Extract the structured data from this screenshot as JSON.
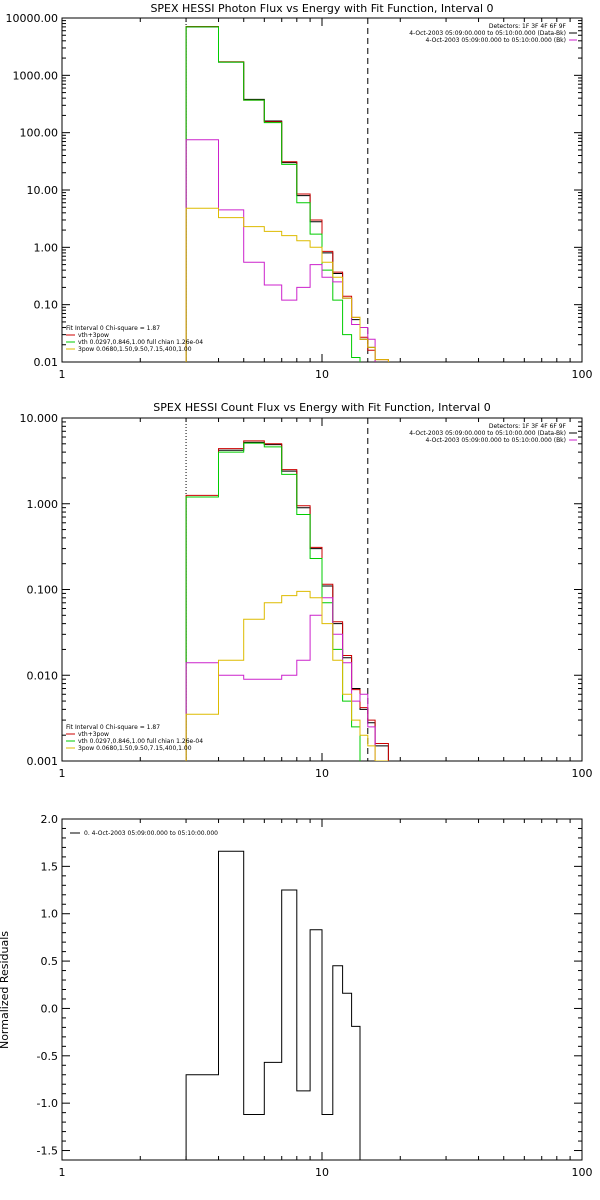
{
  "chart_data": [
    {
      "type": "line",
      "title": "SPEX HESSI Photon Flux vs Energy with Fit Function, Interval 0",
      "xscale": "log",
      "yscale": "log",
      "xlim": [
        1,
        100
      ],
      "ylim": [
        0.01,
        10000
      ],
      "xticks": [
        "1",
        "10",
        "100"
      ],
      "yticks": [
        "10000.00",
        "1000.00",
        "100.00",
        "10.00",
        "1.00",
        "0.10",
        "0.01"
      ],
      "legend_right": [
        {
          "text": "Detectors: 1F 3F 4F 6F 9F"
        },
        {
          "text": "4-Oct-2003 05:09:00.000 to 05:10:00.000 (Data-Bk)",
          "color": "#000000"
        },
        {
          "text": "4-Oct-2003 05:09:00.000 to 05:10:00.000 (Bk)",
          "color": "#cc22cc"
        }
      ],
      "legend_left": [
        {
          "text": "Fit Interval 0   Chi-square = 1.87"
        },
        {
          "text": "vth+3pow",
          "color": "#cc0000"
        },
        {
          "text": "vth 0.0297,0.846,1.00  full chian 1.26e-04",
          "color": "#00cc00"
        },
        {
          "text": "3pow 0.0680,1.50,9.50,7.15,400,1.00",
          "color": "#ddbb00"
        }
      ],
      "vlines": [
        {
          "x": 3.0,
          "style": "dotted"
        },
        {
          "x": 15.0,
          "style": "dashed"
        }
      ],
      "series": [
        {
          "color": "#000000",
          "edges": [
            3.0,
            4.0,
            5.0,
            6.0,
            7.0,
            8.0,
            9.0,
            10.0,
            11.0,
            12.0,
            13.0,
            14.0,
            15.0,
            16.0,
            18.0
          ],
          "values": [
            7000,
            1700,
            380,
            160,
            30,
            8,
            2.8,
            0.8,
            0.35,
            0.13,
            0.055,
            0.025,
            0.018,
            0.01
          ]
        },
        {
          "color": "#cc0000",
          "edges": [
            3.0,
            4.0,
            5.0,
            6.0,
            7.0,
            8.0,
            9.0,
            10.0,
            11.0,
            12.0,
            13.0,
            14.0,
            15.0,
            16.0,
            18.0
          ],
          "values": [
            7100,
            1720,
            370,
            155,
            31,
            8.5,
            3.0,
            0.85,
            0.37,
            0.14,
            0.06,
            0.027,
            0.016,
            0.011
          ]
        },
        {
          "color": "#00cc00",
          "edges": [
            3.0,
            4.0,
            5.0,
            6.0,
            7.0,
            8.0,
            9.0,
            10.0,
            11.0,
            12.0,
            13.0,
            14.0
          ],
          "values": [
            7000,
            1700,
            370,
            150,
            28,
            6,
            1.7,
            0.4,
            0.12,
            0.03,
            0.012
          ]
        },
        {
          "color": "#cc22cc",
          "edges": [
            3.0,
            4.0,
            5.0,
            6.0,
            7.0,
            8.0,
            9.0,
            10.0,
            11.0,
            12.0,
            13.0,
            14.0,
            15.0,
            16.0
          ],
          "values": [
            75,
            4.5,
            0.55,
            0.22,
            0.12,
            0.2,
            0.5,
            0.3,
            0.25,
            0.13,
            0.045,
            0.04,
            0.025
          ]
        },
        {
          "color": "#ddbb00",
          "edges": [
            3.0,
            4.0,
            5.0,
            6.0,
            7.0,
            8.0,
            9.0,
            10.0,
            11.0,
            12.0,
            13.0,
            14.0,
            15.0,
            16.0,
            18.0
          ],
          "values": [
            4.8,
            3.3,
            2.3,
            1.9,
            1.6,
            1.3,
            1.0,
            0.55,
            0.3,
            0.13,
            0.06,
            0.025,
            0.018,
            0.011
          ]
        }
      ]
    },
    {
      "type": "line",
      "title": "SPEX HESSI Count Flux vs Energy with Fit Function, Interval 0",
      "xscale": "log",
      "yscale": "log",
      "xlim": [
        1,
        100
      ],
      "ylim": [
        0.001,
        10
      ],
      "xticks": [
        "1",
        "10",
        "100"
      ],
      "yticks": [
        "10.000",
        "1.000",
        "0.100",
        "0.010",
        "0.001"
      ],
      "legend_right": [
        {
          "text": "Detectors: 1F 3F 4F 6F 9F"
        },
        {
          "text": "4-Oct-2003 05:09:00.000 to 05:10:00.000 (Data-Bk)",
          "color": "#000000"
        },
        {
          "text": "4-Oct-2003 05:09:00.000 to 05:10:00.000 (Bk)",
          "color": "#cc22cc"
        }
      ],
      "legend_left": [
        {
          "text": "Fit Interval 0   Chi-square = 1.87"
        },
        {
          "text": "vth+3pow",
          "color": "#cc0000"
        },
        {
          "text": "vth 0.0297,0.846,1.00  full chian 1.26e-04",
          "color": "#00cc00"
        },
        {
          "text": "3pow 0.0680,1.50,9.50,7.15,400,1.00",
          "color": "#ddbb00"
        }
      ],
      "vlines": [
        {
          "x": 3.0,
          "style": "dotted"
        },
        {
          "x": 15.0,
          "style": "dashed"
        }
      ],
      "series": [
        {
          "color": "#000000",
          "edges": [
            3.0,
            4.0,
            5.0,
            6.0,
            7.0,
            8.0,
            9.0,
            10.0,
            11.0,
            12.0,
            13.0,
            14.0,
            15.0,
            16.0,
            18.0
          ],
          "values": [
            1.2,
            4.2,
            5.2,
            4.9,
            2.4,
            0.9,
            0.3,
            0.11,
            0.04,
            0.016,
            0.007,
            0.004,
            0.0028,
            0.0015
          ]
        },
        {
          "color": "#cc0000",
          "edges": [
            3.0,
            4.0,
            5.0,
            6.0,
            7.0,
            8.0,
            9.0,
            10.0,
            11.0,
            12.0,
            13.0,
            14.0,
            15.0,
            16.0,
            18.0
          ],
          "values": [
            1.25,
            4.4,
            5.4,
            5.0,
            2.5,
            0.95,
            0.31,
            0.115,
            0.042,
            0.017,
            0.0068,
            0.0042,
            0.003,
            0.0016
          ]
        },
        {
          "color": "#00cc00",
          "edges": [
            3.0,
            4.0,
            5.0,
            6.0,
            7.0,
            8.0,
            9.0,
            10.0,
            11.0,
            12.0,
            13.0,
            14.0
          ],
          "values": [
            1.2,
            4.0,
            5.1,
            4.6,
            2.2,
            0.75,
            0.23,
            0.07,
            0.02,
            0.005,
            0.0025
          ]
        },
        {
          "color": "#cc22cc",
          "edges": [
            3.0,
            4.0,
            5.0,
            6.0,
            7.0,
            8.0,
            9.0,
            10.0,
            11.0,
            12.0,
            13.0,
            14.0,
            15.0,
            16.0
          ],
          "values": [
            0.014,
            0.01,
            0.009,
            0.009,
            0.01,
            0.015,
            0.05,
            0.08,
            0.03,
            0.014,
            0.005,
            0.006,
            0.0025
          ]
        },
        {
          "color": "#ddbb00",
          "edges": [
            3.0,
            4.0,
            5.0,
            6.0,
            7.0,
            8.0,
            9.0,
            10.0,
            11.0,
            12.0,
            13.0,
            14.0,
            15.0,
            16.0,
            18.0
          ],
          "values": [
            0.0035,
            0.015,
            0.045,
            0.07,
            0.085,
            0.095,
            0.08,
            0.04,
            0.015,
            0.006,
            0.003,
            0.002,
            0.0015,
            0.001
          ]
        }
      ]
    },
    {
      "type": "line",
      "ylabel": "Normalized Residuals",
      "xscale": "log",
      "xlim": [
        1,
        100
      ],
      "ylim": [
        -1.6,
        2.0
      ],
      "xticks": [
        "1",
        "10",
        "100"
      ],
      "yticks": [
        "2.0",
        "1.5",
        "1.0",
        "0.5",
        "0.0",
        "-0.5",
        "-1.0",
        "-1.5"
      ],
      "legend": [
        {
          "text": "0. 4-Oct-2003 05:09:00.000 to 05:10:00.000",
          "color": "#000000"
        }
      ],
      "series": [
        {
          "color": "#000000",
          "edges": [
            3.0,
            4.0,
            5.0,
            6.0,
            7.0,
            8.0,
            9.0,
            10.0,
            11.0,
            12.0,
            13.0,
            14.0,
            15.0
          ],
          "values": [
            -0.7,
            1.66,
            -1.12,
            -0.57,
            1.25,
            -0.87,
            0.83,
            -1.12,
            0.45,
            0.16,
            -0.19,
            -2.0
          ]
        }
      ]
    }
  ]
}
